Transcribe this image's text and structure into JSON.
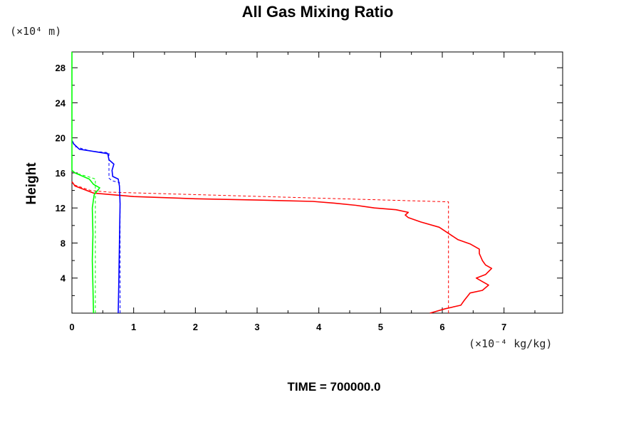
{
  "chart_data": {
    "type": "line",
    "title": "All Gas Mixing Ratio",
    "ylabel": "Height",
    "y_unit": "(×10⁴ m)",
    "x_unit": "(×10⁻⁴ kg/kg)",
    "footer": "TIME = 700000.0",
    "xlim": [
      0,
      7.95
    ],
    "ylim": [
      0,
      29.8
    ],
    "x_ticks": [
      "0",
      "1",
      "2",
      "3",
      "4",
      "5",
      "6",
      "7"
    ],
    "y_ticks": [
      "4",
      "8",
      "12",
      "16",
      "20",
      "24",
      "28"
    ],
    "series": [
      {
        "color": "#ff0000",
        "style": "solid",
        "points": [
          [
            5.8,
            0
          ],
          [
            6.05,
            0.5
          ],
          [
            6.3,
            0.9
          ],
          [
            6.35,
            1.4
          ],
          [
            6.45,
            2.3
          ],
          [
            6.65,
            2.6
          ],
          [
            6.75,
            3.2
          ],
          [
            6.65,
            3.6
          ],
          [
            6.55,
            4.0
          ],
          [
            6.7,
            4.4
          ],
          [
            6.8,
            5.1
          ],
          [
            6.7,
            5.5
          ],
          [
            6.65,
            6.0
          ],
          [
            6.6,
            6.8
          ],
          [
            6.6,
            7.3
          ],
          [
            6.45,
            7.9
          ],
          [
            6.25,
            8.4
          ],
          [
            6.1,
            9.1
          ],
          [
            5.95,
            9.8
          ],
          [
            5.65,
            10.4
          ],
          [
            5.45,
            10.9
          ],
          [
            5.4,
            11.2
          ],
          [
            5.45,
            11.5
          ],
          [
            5.25,
            11.8
          ],
          [
            4.9,
            12.0
          ],
          [
            4.6,
            12.3
          ],
          [
            4.25,
            12.55
          ],
          [
            3.9,
            12.75
          ],
          [
            3.0,
            12.9
          ],
          [
            2.0,
            13.05
          ],
          [
            1.0,
            13.3
          ],
          [
            0.35,
            13.7
          ],
          [
            0.05,
            14.5
          ],
          [
            0,
            15.0
          ]
        ]
      },
      {
        "color": "#ff0000",
        "style": "dashed",
        "points": [
          [
            6.1,
            0
          ],
          [
            6.1,
            8.6
          ],
          [
            6.1,
            12.7
          ],
          [
            0.6,
            13.8
          ],
          [
            0.3,
            14.0
          ],
          [
            0.05,
            14.6
          ],
          [
            0,
            15.0
          ]
        ]
      },
      {
        "color": "#0000ff",
        "style": "solid",
        "points": [
          [
            0.75,
            0
          ],
          [
            0.76,
            4
          ],
          [
            0.77,
            8
          ],
          [
            0.78,
            12.5
          ],
          [
            0.77,
            14.5
          ],
          [
            0.75,
            15.3
          ],
          [
            0.66,
            15.6
          ],
          [
            0.65,
            16.3
          ],
          [
            0.68,
            17.0
          ],
          [
            0.6,
            17.5
          ],
          [
            0.58,
            18.2
          ],
          [
            0.4,
            18.4
          ],
          [
            0.12,
            18.7
          ],
          [
            0.03,
            19.3
          ],
          [
            0,
            19.7
          ]
        ]
      },
      {
        "color": "#0000ff",
        "style": "dashed",
        "points": [
          [
            0.78,
            0
          ],
          [
            0.78,
            12
          ],
          [
            0.77,
            14.9
          ],
          [
            0.65,
            15.1
          ],
          [
            0.6,
            15.4
          ],
          [
            0.6,
            18.3
          ],
          [
            0.3,
            18.5
          ],
          [
            0.05,
            19.0
          ],
          [
            0,
            19.7
          ]
        ]
      },
      {
        "color": "#00ff00",
        "style": "solid",
        "points": [
          [
            0.35,
            0
          ],
          [
            0.34,
            3
          ],
          [
            0.33,
            6
          ],
          [
            0.34,
            9
          ],
          [
            0.33,
            12
          ],
          [
            0.36,
            13.5
          ],
          [
            0.45,
            14.3
          ],
          [
            0.35,
            14.7
          ],
          [
            0.28,
            15.3
          ],
          [
            0.18,
            15.6
          ],
          [
            0.05,
            16.0
          ],
          [
            0,
            16.3
          ],
          [
            0,
            29.8
          ]
        ]
      },
      {
        "color": "#00ff00",
        "style": "dashed",
        "points": [
          [
            0.38,
            0
          ],
          [
            0.38,
            15.3
          ],
          [
            0.25,
            15.6
          ],
          [
            0.05,
            16.0
          ],
          [
            0,
            16.3
          ]
        ]
      }
    ]
  }
}
